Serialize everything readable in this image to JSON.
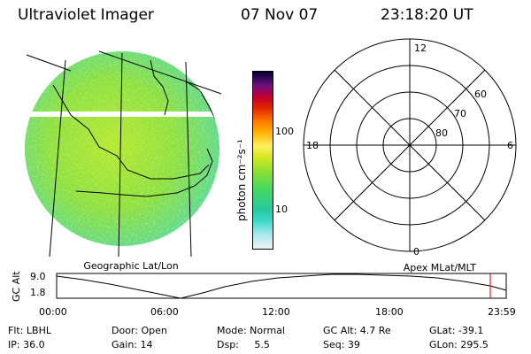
{
  "header": {
    "instrument": "Ultraviolet Imager",
    "date": "07 Nov 07",
    "time": "23:18:20 UT"
  },
  "left_map": {
    "label": "Geographic Lat/Lon"
  },
  "colorbar": {
    "unit": "photon cm⁻²s⁻¹",
    "ticks": [
      "100",
      "10"
    ]
  },
  "polar_plot": {
    "label": "Apex MLat/MLT",
    "mlt_labels": {
      "top": "12",
      "right": "6",
      "bottom": "0",
      "left": "18"
    },
    "lat_labels": [
      "60",
      "70",
      "80"
    ]
  },
  "timeline": {
    "ylabel": "GC Alt",
    "y_max": "9.0",
    "y_min": "1.8",
    "x_ticks": [
      "00:00",
      "06:00",
      "12:00",
      "18:00",
      "23:59"
    ],
    "marker_color": "#cc0000"
  },
  "status": {
    "row1": [
      {
        "name": "filter",
        "text": "Flt: LBHL"
      },
      {
        "name": "door",
        "text": "Door: Open"
      },
      {
        "name": "mode",
        "text": "Mode: Normal"
      },
      {
        "name": "gc-alt",
        "text": "GC Alt: 4.7 Re"
      },
      {
        "name": "glat",
        "text": "GLat: -39.1"
      }
    ],
    "row2": [
      {
        "name": "ip",
        "text": "IP: 36.0"
      },
      {
        "name": "gain",
        "text": "Gain: 14"
      },
      {
        "name": "dsp",
        "text": "Dsp:     5.5"
      },
      {
        "name": "seq",
        "text": "Seq: 39"
      },
      {
        "name": "glon",
        "text": "GLon: 295.5"
      }
    ]
  }
}
